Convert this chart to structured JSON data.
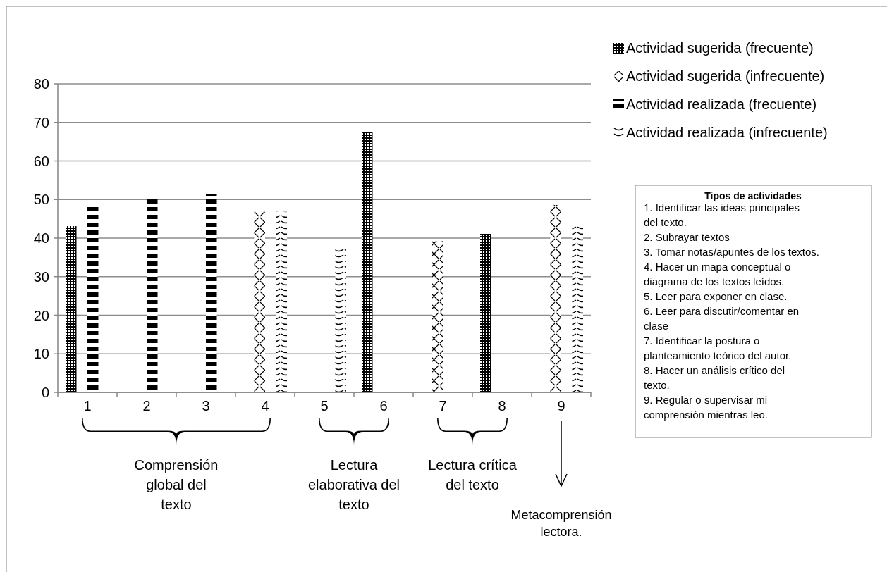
{
  "chart_data": {
    "type": "bar",
    "categories": [
      "1",
      "2",
      "3",
      "4",
      "5",
      "6",
      "7",
      "8",
      "9"
    ],
    "series": [
      {
        "name": "Actividad sugerida (frecuente)",
        "color": "#000000",
        "values": [
          43.1,
          null,
          null,
          null,
          null,
          67.4,
          null,
          41.1,
          null
        ]
      },
      {
        "name": "Actividad sugerida (infrecuente)",
        "color": "#000000",
        "values": [
          null,
          null,
          null,
          46.8,
          null,
          null,
          39.2,
          null,
          48.6
        ]
      },
      {
        "name": "Actividad realizada (frecuente)",
        "color": "#000000",
        "values": [
          48.7,
          50.5,
          51.5,
          null,
          null,
          null,
          null,
          null,
          null
        ]
      },
      {
        "name": "Actividad realizada (infrecuente)",
        "color": "#000000",
        "values": [
          null,
          null,
          null,
          46.8,
          37.4,
          null,
          null,
          null,
          43
        ]
      }
    ],
    "ylim": [
      0,
      80
    ],
    "yticks": [
      0,
      10,
      20,
      30,
      40,
      50,
      60,
      70,
      80
    ],
    "grid": "y",
    "legend": "top right",
    "annotations": [
      "Comprensión global  del texto",
      "Lectura elaborativa del texto",
      "Lectura crítica del texto",
      "Metacomprensión lectora.",
      "Tipos de actividades",
      "1.  Identificar las ideas principales del texto.",
      "2.   Subrayar textos",
      "3. Tomar notas/apuntes de los textos.",
      "4. Hacer un mapa conceptual o diagrama de los textos leídos.",
      "5. Leer para exponer en clase.",
      "6. Leer para discutir/comentar en clase",
      "7. Identificar la postura o planteamiento teórico del autor.",
      "8. Hacer un análisis crítico del texto.",
      "9. Regular o supervisar mi comprensión mientras leo."
    ]
  }
}
